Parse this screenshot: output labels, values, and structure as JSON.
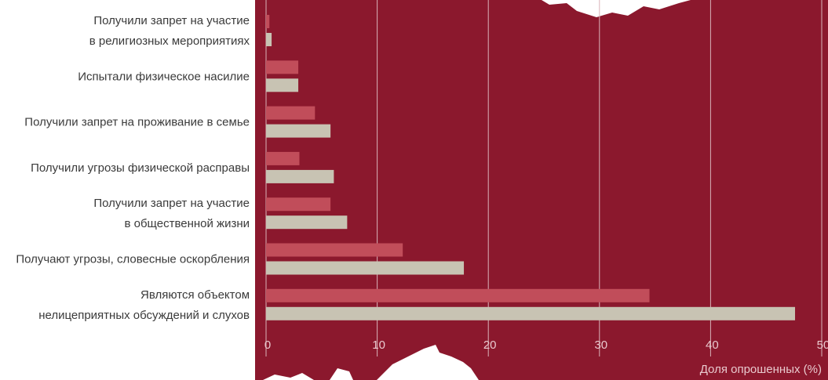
{
  "chart_data": {
    "type": "bar",
    "orientation": "horizontal",
    "categories": [
      "Получили запрет на участие\nв религиозных мероприятиях",
      "Испытали физическое насилие",
      "Получили запрет на проживание в семье",
      "Получили угрозы физической расправы",
      "Получили запрет на участие\nв  общественной жизни",
      "Получают угрозы, словесные оскорбления",
      "Являются объектом\nнелицеприятных обсуждений и слухов"
    ],
    "series": [
      {
        "color": "#c14d5a",
        "values": [
          0.3,
          2.9,
          4.4,
          3.0,
          5.8,
          12.3,
          34.5
        ]
      },
      {
        "color": "#c8c3b3",
        "values": [
          0.5,
          2.9,
          5.8,
          6.1,
          7.3,
          17.8,
          47.6
        ]
      }
    ],
    "xlim": [
      0,
      50
    ],
    "xticks": [
      0,
      10,
      20,
      30,
      40,
      50
    ],
    "grid": true,
    "x_label": "Доля опрошенных (%)",
    "background": "#8b182d"
  }
}
